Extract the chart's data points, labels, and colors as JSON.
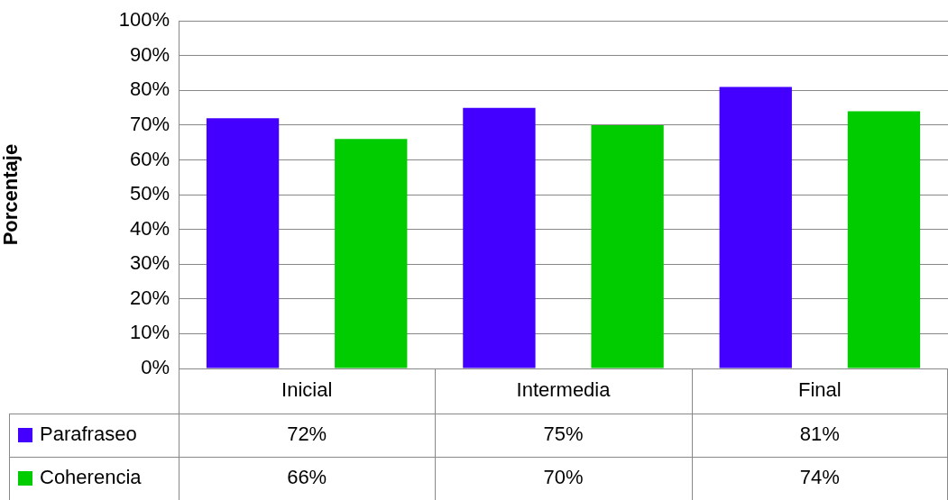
{
  "chart_data": {
    "type": "bar",
    "ylabel": "Porcentaje",
    "categories": [
      "Inicial",
      "Intermedia",
      "Final"
    ],
    "series": [
      {
        "name": "Parafraseo",
        "color": "#4400ff",
        "values": [
          72,
          75,
          81
        ]
      },
      {
        "name": "Coherencia",
        "color": "#00cc00",
        "values": [
          66,
          70,
          74
        ]
      }
    ],
    "ylim": [
      0,
      100
    ],
    "yticks": [
      {
        "value": 0,
        "label": "0%"
      },
      {
        "value": 10,
        "label": "10%"
      },
      {
        "value": 20,
        "label": "20%"
      },
      {
        "value": 30,
        "label": "30%"
      },
      {
        "value": 40,
        "label": "40%"
      },
      {
        "value": 50,
        "label": "50%"
      },
      {
        "value": 60,
        "label": "60%"
      },
      {
        "value": 70,
        "label": "70%"
      },
      {
        "value": 80,
        "label": "80%"
      },
      {
        "value": 90,
        "label": "90%"
      },
      {
        "value": 100,
        "label": "100%"
      }
    ],
    "value_labels": [
      [
        "72%",
        "75%",
        "81%"
      ],
      [
        "66%",
        "70%",
        "74%"
      ]
    ],
    "grid": "y",
    "legend": "bottom left"
  }
}
